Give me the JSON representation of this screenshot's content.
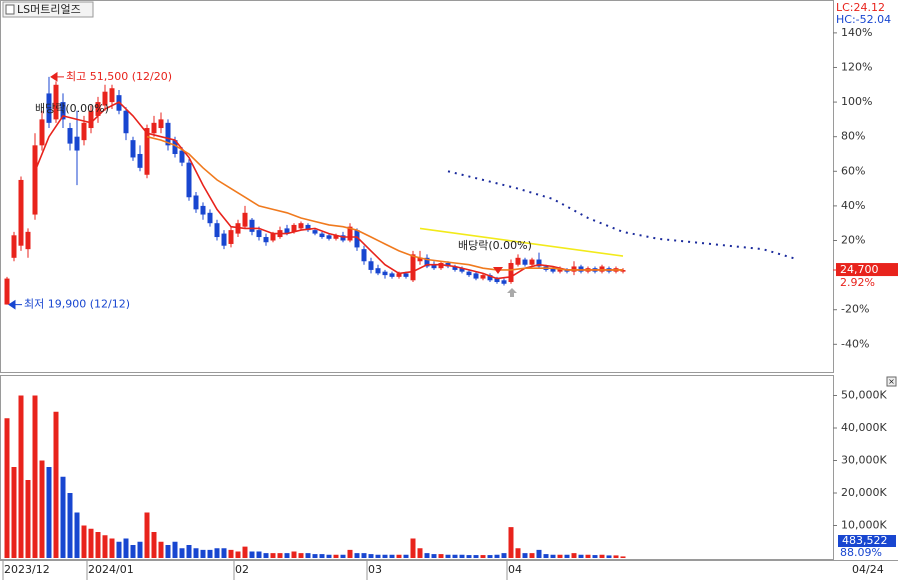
{
  "chart_data": [
    {
      "type": "candlestick",
      "title": "LS머트리얼즈",
      "lc": "LC:24.12",
      "hc": "HC:-52.04",
      "up_color": "#e8231c",
      "down_color": "#1846d0",
      "categories": [
        "2023/12",
        null,
        null,
        null,
        null,
        null,
        null,
        null,
        null,
        null,
        null,
        null,
        "2024/01",
        null,
        null,
        null,
        null,
        null,
        null,
        null,
        null,
        null,
        null,
        null,
        null,
        null,
        null,
        null,
        null,
        null,
        null,
        null,
        null,
        "02",
        null,
        null,
        null,
        null,
        null,
        null,
        null,
        null,
        null,
        null,
        null,
        null,
        null,
        null,
        null,
        null,
        null,
        null,
        "03",
        null,
        null,
        null,
        null,
        null,
        null,
        null,
        null,
        null,
        null,
        null,
        null,
        null,
        null,
        null,
        null,
        null,
        null,
        null,
        "04",
        null,
        null,
        null,
        null,
        null,
        null,
        null,
        null,
        null,
        null,
        null,
        null,
        null,
        null,
        null,
        null
      ],
      "last_date": "04/24",
      "open": [
        -17,
        10,
        17,
        15,
        35,
        75,
        105,
        90,
        100,
        85,
        80,
        78,
        85,
        92,
        98,
        100,
        104,
        95,
        78,
        70,
        58,
        82,
        85,
        88,
        78,
        72,
        65,
        46,
        40,
        36,
        30,
        24,
        18,
        24,
        28,
        32,
        26,
        22,
        20,
        22,
        27,
        25,
        27,
        29,
        26,
        24,
        23,
        21,
        23,
        20,
        26,
        15,
        8,
        4,
        2,
        1,
        -1,
        1,
        -3,
        8,
        10,
        6,
        4,
        7,
        5,
        4,
        2,
        1,
        -2,
        0,
        -2,
        -3,
        -4,
        6,
        9,
        6,
        9,
        5,
        4,
        2,
        3,
        2,
        5,
        2,
        4,
        2,
        4,
        2,
        2
      ],
      "high": [
        -1,
        25,
        57,
        27,
        82,
        95,
        114.58,
        112,
        105,
        88,
        95,
        92,
        98,
        103,
        110,
        110,
        107,
        97,
        80,
        75,
        87,
        92,
        94,
        90,
        80,
        74,
        67,
        48,
        42,
        38,
        32,
        26,
        28,
        32,
        40,
        33,
        28,
        24,
        25,
        28,
        29,
        30,
        31,
        30,
        27,
        25,
        24,
        24,
        25,
        30,
        27,
        17,
        10,
        6,
        3,
        2,
        2,
        2,
        14,
        14,
        12,
        8,
        8,
        8,
        6,
        5,
        3,
        2,
        1,
        1,
        -1,
        -2,
        9,
        12,
        10,
        10,
        13,
        6,
        5,
        5,
        4,
        8,
        6,
        5,
        5,
        6,
        5,
        5,
        4
      ],
      "low": [
        -17.08,
        8,
        14,
        10,
        32,
        72,
        85,
        88,
        85,
        72,
        52,
        75,
        82,
        88,
        95,
        96,
        93,
        78,
        66,
        60,
        56,
        80,
        82,
        72,
        68,
        63,
        43,
        36,
        32,
        28,
        20,
        15,
        16,
        22,
        27,
        23,
        20,
        17,
        19,
        21,
        23,
        24,
        26,
        25,
        23,
        21,
        20,
        20,
        19,
        19,
        14,
        6,
        1,
        0,
        -2,
        -2,
        -2,
        -2,
        -4,
        6,
        4,
        3,
        3,
        4,
        2,
        1,
        -1,
        -3,
        -3,
        -4,
        -5,
        -6,
        -5,
        5,
        5,
        5,
        4,
        2,
        1,
        1,
        1,
        0,
        1,
        1,
        1,
        1,
        1,
        1,
        1
      ],
      "close": [
        -2,
        23,
        55,
        25,
        75,
        90,
        88,
        110,
        90,
        76,
        72,
        88,
        95,
        100,
        106,
        108,
        95,
        82,
        68,
        62,
        85,
        88,
        90,
        75,
        70,
        65,
        45,
        38,
        35,
        30,
        22,
        17,
        26,
        30,
        36,
        25,
        22,
        19,
        24,
        26,
        24,
        29,
        30,
        26,
        24,
        22,
        21,
        23,
        20,
        28,
        16,
        8,
        3,
        1,
        0,
        -1,
        1,
        -1,
        12,
        10,
        5,
        4,
        7,
        5,
        3,
        2,
        0,
        -2,
        0,
        -3,
        -4,
        -5,
        7,
        10,
        6,
        9,
        5,
        3,
        2,
        4,
        2,
        5,
        2,
        4,
        2,
        5,
        2,
        4,
        2.92
      ],
      "lines": [
        {
          "color": "#e8231c",
          "dash": false,
          "x": [
            4,
            6,
            8,
            10,
            12,
            14,
            16,
            18,
            20,
            22,
            24,
            26,
            28,
            30,
            32,
            34,
            36,
            38,
            40,
            42,
            44,
            46,
            48,
            50,
            52,
            54,
            56,
            58,
            60,
            62,
            64,
            66,
            68,
            70,
            72,
            74,
            76,
            78,
            80,
            82,
            84,
            86,
            88
          ],
          "values": [
            60,
            80,
            92,
            90,
            88,
            96,
            100,
            92,
            82,
            80,
            78,
            68,
            52,
            38,
            28,
            27,
            27,
            24,
            24,
            26,
            27,
            24,
            22,
            22,
            14,
            6,
            1,
            2,
            6,
            6,
            5,
            3,
            1,
            -2,
            -1,
            4,
            6,
            5,
            3,
            3,
            3,
            3,
            3
          ]
        },
        {
          "color": "#f07a1e",
          "dash": false,
          "x": [
            20,
            22,
            24,
            26,
            28,
            30,
            32,
            34,
            36,
            38,
            40,
            42,
            44,
            46,
            48,
            50,
            52,
            54,
            56,
            58,
            60,
            62,
            64,
            66,
            68,
            70,
            72,
            74,
            76,
            78,
            80,
            82,
            84,
            86,
            88
          ],
          "values": [
            80,
            78,
            75,
            70,
            62,
            55,
            50,
            45,
            40,
            38,
            36,
            33,
            31,
            29,
            28,
            26,
            22,
            18,
            14,
            11,
            9,
            8,
            7,
            6,
            4,
            3,
            3,
            4,
            4,
            4,
            3,
            3,
            3,
            3,
            3
          ]
        },
        {
          "color": "#f2ea1a",
          "dash": false,
          "x": [
            59,
            88
          ],
          "values": [
            27,
            11
          ]
        },
        {
          "color": "#1a2a9c",
          "dash": true,
          "x": [
            63,
            68,
            73,
            78,
            83,
            88,
            93,
            98,
            103,
            108,
            113
          ],
          "values": [
            60,
            55,
            50,
            44,
            33,
            25,
            21,
            19,
            17,
            15,
            9
          ]
        }
      ],
      "high_label": "최고 51,500 (12/20)",
      "low_label": "최저 19,900 (12/12)",
      "dividend_labels": [
        "배당락(0.00%)",
        "배당락(0.00%)"
      ],
      "last_price_label": "24,700",
      "last_change_label": "2.92%",
      "xlim": [
        -1,
        118
      ],
      "ylim": [
        -56,
        159
      ],
      "yticks": [
        {
          "value": 140,
          "label": "140%"
        },
        {
          "value": 120,
          "label": "120%"
        },
        {
          "value": 100,
          "label": "100%"
        },
        {
          "value": 80,
          "label": "80%"
        },
        {
          "value": 60,
          "label": "60%"
        },
        {
          "value": 40,
          "label": "40%"
        },
        {
          "value": 20,
          "label": "20%"
        },
        {
          "value": -20,
          "label": "-20%"
        },
        {
          "value": -40,
          "label": "-40%"
        }
      ]
    },
    {
      "type": "bar",
      "values": [
        43000,
        28000,
        50000,
        24000,
        50000,
        30000,
        28000,
        45000,
        25000,
        20000,
        14000,
        10000,
        9000,
        8000,
        7000,
        6000,
        5000,
        6000,
        4000,
        5000,
        14000,
        8000,
        5000,
        4000,
        5000,
        3000,
        4000,
        3000,
        2500,
        2500,
        3000,
        3000,
        2500,
        2000,
        3500,
        2000,
        2000,
        1500,
        1500,
        1500,
        1500,
        2000,
        1500,
        1500,
        1200,
        1200,
        1000,
        1000,
        1000,
        2500,
        1500,
        1500,
        1200,
        1000,
        1000,
        1000,
        1000,
        1000,
        6000,
        3000,
        1500,
        1200,
        1200,
        1000,
        1000,
        1000,
        900,
        900,
        900,
        900,
        1000,
        1500,
        9500,
        3000,
        1500,
        1500,
        2500,
        1200,
        1000,
        1000,
        1000,
        1500,
        1000,
        1000,
        900,
        1000,
        800,
        800,
        483.522
      ],
      "last_volume_label": "483,522",
      "volume_ratio_label": "88.09%",
      "ylim": [
        0,
        56000
      ],
      "yticks": [
        {
          "value": 50000,
          "label": "50,000K"
        },
        {
          "value": 40000,
          "label": "40,000K"
        },
        {
          "value": 30000,
          "label": "30,000K"
        },
        {
          "value": 20000,
          "label": "20,000K"
        },
        {
          "value": 10000,
          "label": "10,000K"
        }
      ]
    }
  ]
}
